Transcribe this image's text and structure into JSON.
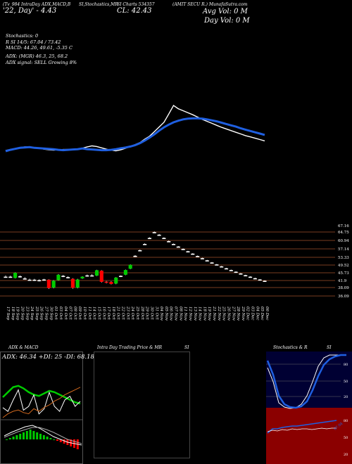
{
  "header": {
    "left_line1": "(Tv_984 IntraDay ADX,MACD,B",
    "left_line2": "'22, Day' - 4.43",
    "mid1": "SI,Stochastics,MR",
    "mid2": "SI Charts 534357",
    "price": "CL: 42.43",
    "company": "(AMIT SECU R.) MunafaSutra.com",
    "avg_vol": "Avg Vol: 0   M",
    "day_vol": "Day Vol: 0   M"
  },
  "indicators": {
    "stoch": "Stochastics: 0",
    "rsi": "R              SI 14/5: 67.04  / 73.42",
    "macd": "MACD: 44.26,  49.61, -5.35 C",
    "adx": "ADX:                          (MGR) 46.3,  25, 68.2",
    "signal": "ADX  signal: SELL Growing 8%"
  },
  "price_levels": [
    "67.16",
    "64.75",
    "60.94",
    "57.14",
    "53.33",
    "49.52",
    "45.73",
    "41.9",
    "38.09",
    "36.09"
  ],
  "date_labels": [
    "17 Sep",
    "18 Sep",
    "19 Sep",
    "20 Sep",
    "23 Sep",
    "24 Sep",
    "25 Sep",
    "26 Sep",
    "27 Sep",
    "30 Sep",
    "01 Oct",
    "03 Oct",
    "04 Oct",
    "07 Oct",
    "08 Oct",
    "09 Oct",
    "10 Oct",
    "11 Oct",
    "14 Oct",
    "15 Oct",
    "16 Oct",
    "17 Oct",
    "18 Oct",
    "21 Oct",
    "22 Oct",
    "23 Oct",
    "24 Oct",
    "25 Oct",
    "28 Oct",
    "29 Oct",
    "30 Oct",
    "31 Oct",
    "04 Nov",
    "05 Nov",
    "06 Nov",
    "07 Nov",
    "08 Nov",
    "11 Nov",
    "12 Nov",
    "13 Nov",
    "14 Nov",
    "18 Nov",
    "19 Nov",
    "21 Nov",
    "22 Nov",
    "25 Nov",
    "26 Nov",
    "27 Nov",
    "28 Nov",
    "29 Nov",
    "02 Dec",
    "03 Dec",
    "04 Dec",
    "05 Dec",
    "06 Dec"
  ],
  "panels": {
    "adx_title": "ADX  & MACD",
    "adx_readout": "ADX: 46.34  +DI: 25  -DI: 68.18",
    "intraday_title": "Intra  Day Trading Price  & MR",
    "intraday_si": "SI",
    "stoch_title": "Stochastics & R",
    "stoch_si": "SI",
    "stoch_ticks": [
      "80",
      "50",
      "20"
    ],
    "rsi_ticks": [
      "80",
      "50",
      "20"
    ],
    "rsi_value": "67.04"
  },
  "colors": {
    "up": "#00cc00",
    "down": "#ff0000",
    "ma": "#1f5fe0",
    "grid": "#a0522d",
    "rsi_bg": "#8b0000",
    "stoch_bg": "#000033"
  },
  "chart_data": {
    "type": "candlestick",
    "categories": [
      "17 Sep",
      "18 Sep",
      "19 Sep",
      "20 Sep",
      "23 Sep",
      "24 Sep",
      "25 Sep",
      "26 Sep",
      "27 Sep",
      "30 Sep",
      "01 Oct",
      "03 Oct",
      "04 Oct",
      "07 Oct",
      "08 Oct",
      "09 Oct",
      "10 Oct",
      "11 Oct",
      "14 Oct",
      "15 Oct",
      "16 Oct",
      "17 Oct",
      "18 Oct",
      "21 Oct",
      "22 Oct",
      "23 Oct",
      "24 Oct",
      "25 Oct",
      "28 Oct",
      "29 Oct",
      "30 Oct",
      "31 Oct",
      "04 Nov",
      "05 Nov",
      "06 Nov",
      "07 Nov",
      "08 Nov",
      "11 Nov",
      "12 Nov",
      "13 Nov",
      "14 Nov",
      "18 Nov",
      "19 Nov",
      "21 Nov",
      "22 Nov",
      "25 Nov",
      "26 Nov",
      "27 Nov",
      "28 Nov",
      "29 Nov",
      "02 Dec",
      "03 Dec",
      "04 Dec",
      "05 Dec",
      "06 Dec"
    ],
    "ohlc": [
      [
        44.0,
        44.6,
        43.6,
        44.0
      ],
      [
        44.0,
        44.5,
        43.5,
        43.9
      ],
      [
        43.4,
        46.0,
        43.2,
        45.8
      ],
      [
        44.2,
        44.6,
        43.6,
        43.9
      ],
      [
        43.2,
        43.8,
        42.8,
        43.0
      ],
      [
        42.6,
        43.1,
        42.2,
        42.4
      ],
      [
        42.6,
        43.0,
        42.0,
        42.3
      ],
      [
        42.4,
        42.8,
        41.8,
        42.0
      ],
      [
        42.7,
        43.0,
        42.2,
        42.6
      ],
      [
        42.6,
        42.8,
        38.3,
        38.7
      ],
      [
        38.9,
        42.4,
        38.6,
        42.1
      ],
      [
        42.4,
        45.2,
        42.2,
        44.9
      ],
      [
        44.4,
        44.8,
        43.8,
        44.3
      ],
      [
        43.8,
        44.2,
        43.2,
        43.6
      ],
      [
        43.0,
        43.3,
        38.4,
        38.8
      ],
      [
        38.9,
        43.0,
        38.6,
        42.7
      ],
      [
        43.2,
        44.2,
        43.0,
        44.0
      ],
      [
        44.3,
        45.0,
        44.0,
        44.6
      ],
      [
        44.6,
        45.2,
        44.3,
        44.6
      ],
      [
        44.5,
        47.2,
        44.3,
        47.0
      ],
      [
        46.8,
        47.0,
        41.3,
        41.6
      ],
      [
        41.7,
        42.0,
        40.9,
        41.2
      ],
      [
        41.6,
        41.9,
        40.4,
        40.6
      ],
      [
        40.8,
        43.8,
        40.5,
        43.6
      ],
      [
        44.2,
        44.6,
        43.8,
        44.4
      ],
      [
        44.9,
        47.3,
        44.7,
        47.1
      ],
      [
        47.7,
        49.7,
        47.5,
        49.5
      ],
      [
        53.6,
        54.0,
        53.3,
        53.7
      ],
      [
        56.3,
        56.6,
        56.0,
        56.3
      ],
      [
        59.2,
        59.5,
        58.9,
        59.2
      ],
      [
        62.0,
        62.3,
        61.8,
        62.0
      ],
      [
        64.7,
        65.0,
        64.4,
        64.7
      ],
      [
        63.5,
        63.8,
        63.2,
        63.5
      ],
      [
        62.0,
        62.3,
        61.8,
        62.0
      ],
      [
        60.5,
        60.8,
        60.2,
        60.5
      ],
      [
        59.2,
        59.4,
        59.0,
        59.2
      ],
      [
        58.0,
        58.2,
        57.8,
        58.0
      ],
      [
        56.9,
        57.1,
        56.7,
        56.9
      ],
      [
        55.8,
        56.0,
        55.6,
        55.8
      ],
      [
        54.7,
        54.9,
        54.5,
        54.7
      ],
      [
        53.6,
        53.8,
        53.4,
        53.6
      ],
      [
        52.6,
        52.8,
        52.4,
        52.6
      ],
      [
        51.6,
        51.8,
        51.4,
        51.6
      ],
      [
        50.6,
        50.8,
        50.4,
        50.6
      ],
      [
        49.7,
        49.9,
        49.5,
        49.7
      ],
      [
        48.8,
        49.0,
        48.6,
        48.8
      ],
      [
        47.9,
        48.1,
        47.7,
        47.9
      ],
      [
        47.1,
        47.3,
        46.9,
        47.1
      ],
      [
        46.3,
        46.5,
        46.1,
        46.3
      ],
      [
        45.5,
        45.7,
        45.3,
        45.5
      ],
      [
        44.7,
        44.9,
        44.5,
        44.7
      ],
      [
        44.0,
        44.2,
        43.8,
        44.0
      ],
      [
        43.3,
        43.5,
        43.1,
        43.3
      ],
      [
        42.7,
        42.9,
        42.5,
        42.7
      ],
      [
        42.1,
        42.3,
        41.9,
        42.1
      ]
    ],
    "ema_fast": [
      44.0,
      44.4,
      44.7,
      45.0,
      45.1,
      45.2,
      45.0,
      44.9,
      44.8,
      44.7,
      44.6,
      44.4,
      44.3,
      44.4,
      44.5,
      44.6,
      44.8,
      44.6,
      44.5,
      44.4,
      44.3,
      44.3,
      44.4,
      44.6,
      44.9,
      45.1,
      45.4,
      45.8,
      46.4,
      47.2,
      48.1,
      49.1,
      50.2,
      51.2,
      52.0,
      52.7,
      53.2,
      53.6,
      53.8,
      53.9,
      53.9,
      53.8,
      53.6,
      53.3,
      53.0,
      52.6,
      52.2,
      51.8,
      51.4,
      50.9,
      50.5,
      50.1,
      49.7,
      49.3,
      48.9
    ],
    "ema_slow": [
      44.2,
      44.5,
      44.8,
      45.1,
      45.3,
      45.3,
      45.1,
      44.9,
      44.6,
      44.4,
      44.3,
      44.4,
      44.5,
      44.5,
      44.5,
      44.6,
      44.9,
      45.3,
      45.6,
      45.4,
      45.0,
      44.6,
      44.3,
      44.1,
      44.4,
      44.9,
      45.4,
      46.0,
      46.6,
      47.6,
      48.5,
      49.9,
      51.3,
      52.7,
      55.2,
      57.8,
      56.8,
      56.2,
      55.6,
      55.0,
      54.3,
      53.6,
      53.0,
      52.4,
      51.8,
      51.2,
      50.7,
      50.2,
      49.7,
      49.2,
      48.7,
      48.3,
      47.9,
      47.5,
      47.1
    ],
    "ylim": [
      30,
      70
    ]
  }
}
